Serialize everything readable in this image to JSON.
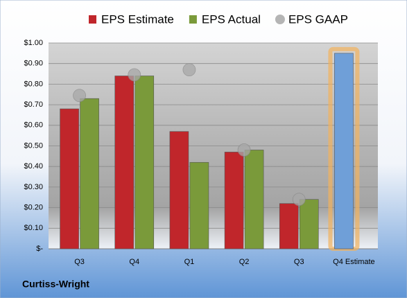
{
  "chart_data": {
    "type": "bar",
    "categories": [
      "Q3",
      "Q4",
      "Q1",
      "Q2",
      "Q3",
      "Q4 Estimate"
    ],
    "series": [
      {
        "name": "EPS Estimate",
        "color": "#c0262b",
        "values": [
          0.68,
          0.84,
          0.57,
          0.47,
          0.22,
          0.95
        ]
      },
      {
        "name": "EPS Actual",
        "color": "#7a9a3a",
        "values": [
          0.73,
          0.84,
          0.42,
          0.48,
          0.24,
          null
        ]
      },
      {
        "name": "EPS GAAP",
        "color": "#a8a8a8",
        "marker": "circle",
        "values": [
          0.745,
          0.845,
          0.87,
          0.48,
          0.24,
          null
        ]
      }
    ],
    "highlight": {
      "series": 0,
      "index": 5,
      "color": "#6f9fd8",
      "glow": "#f2b25c"
    },
    "ylim": [
      0,
      1
    ],
    "yticks": [
      {
        "value": 0,
        "label": "$-"
      },
      {
        "value": 0.1,
        "label": "$0.10"
      },
      {
        "value": 0.2,
        "label": "$0.20"
      },
      {
        "value": 0.3,
        "label": "$0.30"
      },
      {
        "value": 0.4,
        "label": "$0.40"
      },
      {
        "value": 0.5,
        "label": "$0.50"
      },
      {
        "value": 0.6,
        "label": "$0.60"
      },
      {
        "value": 0.7,
        "label": "$0.70"
      },
      {
        "value": 0.8,
        "label": "$0.80"
      },
      {
        "value": 0.9,
        "label": "$0.90"
      },
      {
        "value": 1,
        "label": "$1.00"
      }
    ],
    "grid": true,
    "legend": "top",
    "footer": "Curtiss-Wright"
  }
}
